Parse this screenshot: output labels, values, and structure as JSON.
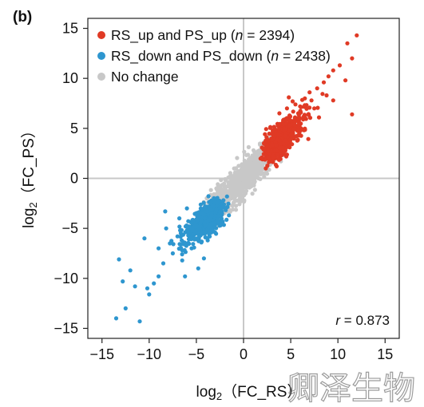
{
  "panel_label": "(b)",
  "watermark": "卿泽生物",
  "chart_data": {
    "type": "scatter",
    "xlabel": {
      "base": "log",
      "sub": "2",
      "rest": "（FC_RS）"
    },
    "ylabel": {
      "base": "log",
      "sub": "2",
      "rest": "（FC_PS）"
    },
    "xlim": [
      -16.5,
      16.5
    ],
    "ylim": [
      -16,
      16
    ],
    "xticks": [
      -15,
      -10,
      -5,
      0,
      5,
      10,
      15
    ],
    "yticks": [
      15,
      10,
      5,
      0,
      -5,
      -10,
      -15
    ],
    "xtick_labels": [
      "−15",
      "−10",
      "−5",
      "0",
      "5",
      "10",
      "15"
    ],
    "ytick_labels": [
      "15",
      "10",
      "5",
      "0",
      "−5",
      "−10",
      "−15"
    ],
    "reference_lines": {
      "x": 0,
      "y": 0,
      "color": "#c8c8c8"
    },
    "legend": {
      "placement": "top-left",
      "entries": [
        {
          "prefix": "RS_up and PS_up (",
          "italic": "n",
          "suffix": " = 2394)",
          "color": "#e03a25"
        },
        {
          "prefix": "RS_down and PS_down (",
          "italic": "n",
          "suffix": " = 2438)",
          "color": "#2e96cf"
        },
        {
          "prefix": "No change",
          "italic": "",
          "suffix": "",
          "color": "#c8c8c8"
        }
      ]
    },
    "annotation": {
      "italic": "r",
      "text": " = 0.873"
    },
    "series": [
      {
        "name": "RS_up and PS_up",
        "color": "#e03a25",
        "n": 2394,
        "points": [
          [
            12.0,
            14.3
          ],
          [
            11.0,
            13.5
          ],
          [
            11.5,
            12.0
          ],
          [
            10.2,
            11.3
          ],
          [
            9.5,
            10.8
          ],
          [
            9.0,
            10.2
          ],
          [
            10.8,
            9.8
          ],
          [
            11.5,
            6.4
          ],
          [
            8.5,
            9.6
          ],
          [
            7.8,
            9.0
          ],
          [
            8.8,
            8.3
          ],
          [
            7.2,
            7.8
          ],
          [
            6.5,
            8.0
          ],
          [
            7.0,
            8.6
          ],
          [
            9.5,
            7.8
          ],
          [
            5.2,
            7.7
          ],
          [
            4.8,
            8.1
          ],
          [
            6.0,
            7.2
          ],
          [
            5.8,
            6.5
          ],
          [
            8.0,
            6.1
          ],
          [
            7.5,
            7.0
          ],
          [
            4.6,
            7.0
          ],
          [
            5.5,
            7.4
          ],
          [
            3.8,
            6.5
          ],
          [
            4.2,
            5.8
          ],
          [
            6.3,
            6.0
          ]
        ]
      },
      {
        "name": "RS_down and PS_down",
        "color": "#2e96cf",
        "n": 2438,
        "points": [
          [
            -13.5,
            -14.0
          ],
          [
            -11.0,
            -14.3
          ],
          [
            -12.5,
            -13.0
          ],
          [
            -13.2,
            -8.1
          ],
          [
            -12.0,
            -9.2
          ],
          [
            -12.8,
            -10.3
          ],
          [
            -10.2,
            -11.0
          ],
          [
            -9.5,
            -10.5
          ],
          [
            -9.0,
            -9.8
          ],
          [
            -8.5,
            -8.5
          ],
          [
            -11.5,
            -10.8
          ],
          [
            -10.5,
            -6.0
          ],
          [
            -8.2,
            -5.0
          ],
          [
            -9.0,
            -7.0
          ],
          [
            -7.5,
            -7.5
          ],
          [
            -6.5,
            -8.2
          ],
          [
            -8.3,
            -3.3
          ],
          [
            -7.0,
            -5.8
          ],
          [
            -6.2,
            -9.8
          ],
          [
            -5.5,
            -7.0
          ],
          [
            -4.8,
            -9.0
          ],
          [
            -4.2,
            -8.0
          ],
          [
            -6.8,
            -4.0
          ],
          [
            -5.8,
            -5.5
          ],
          [
            -3.8,
            -6.2
          ],
          [
            -7.8,
            -6.5
          ],
          [
            -10.0,
            -11.6
          ],
          [
            -6.0,
            -3.0
          ]
        ]
      },
      {
        "name": "No change",
        "color": "#c8c8c8"
      }
    ],
    "correlation": 0.873
  }
}
